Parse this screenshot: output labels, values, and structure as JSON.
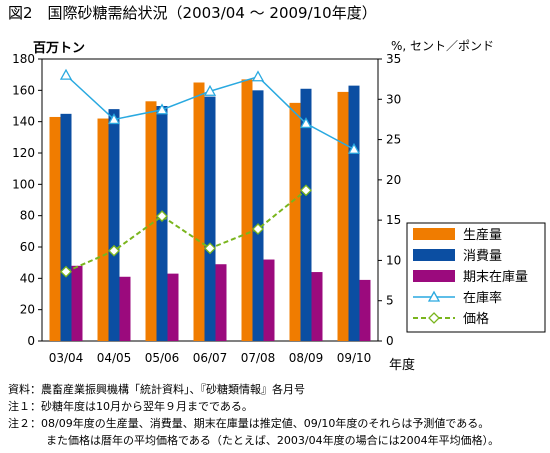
{
  "title": "図2　国際砂糖需給状況（2003/04 ～ 2009/10年度）",
  "chart_data": {
    "type": "bar",
    "title": "図2　国際砂糖需給状況（2003/04 ～ 2009/10年度）",
    "xlabel": "年度",
    "ylabel_left": "百万トン",
    "ylabel_right": "%, セント／ポンド",
    "categories": [
      "03/04",
      "04/05",
      "05/06",
      "06/07",
      "07/08",
      "08/09",
      "09/10"
    ],
    "y_left": {
      "range": [
        0,
        180
      ],
      "ticks": [
        0,
        20,
        40,
        60,
        80,
        100,
        120,
        140,
        160,
        180
      ]
    },
    "y_right": {
      "range": [
        0,
        35
      ],
      "ticks": [
        0,
        5,
        10,
        15,
        20,
        25,
        30,
        35
      ]
    },
    "grid": false,
    "legend_position": "right",
    "series": [
      {
        "name": "生産量",
        "type": "bar",
        "axis": "left",
        "color": "#f07c00",
        "values": [
          143,
          142,
          153,
          165,
          167,
          152,
          159
        ]
      },
      {
        "name": "消費量",
        "type": "bar",
        "axis": "left",
        "color": "#0b4ea2",
        "values": [
          145,
          148,
          150,
          156,
          160,
          161,
          163
        ]
      },
      {
        "name": "期末在庫量",
        "type": "bar",
        "axis": "left",
        "color": "#9b0a7d",
        "values": [
          48,
          41,
          43,
          49,
          52,
          44,
          39
        ]
      },
      {
        "name": "在庫率",
        "type": "line",
        "axis": "right",
        "color": "#29a9e0",
        "marker": "triangle",
        "values": [
          33.0,
          27.5,
          28.7,
          31.0,
          32.8,
          27.0,
          23.8
        ]
      },
      {
        "name": "価格",
        "type": "line",
        "axis": "right",
        "color": "#7ab51d",
        "marker": "diamond",
        "dashed": true,
        "values": [
          8.6,
          11.2,
          15.5,
          11.5,
          13.9,
          18.7,
          null
        ]
      }
    ]
  },
  "notes": [
    "資料：農畜産業振興機構「統計資料」、『砂糖類情報』各月号",
    "注１：砂糖年度は10月から翌年９月までである。",
    "注２：08/09年度の生産量、消費量、期末在庫量は推定値、09/10年度のそれらは予測値である。",
    "また価格は暦年の平均価格である（たとえば、2003/04年度の場合には2004年平均価格）。"
  ]
}
